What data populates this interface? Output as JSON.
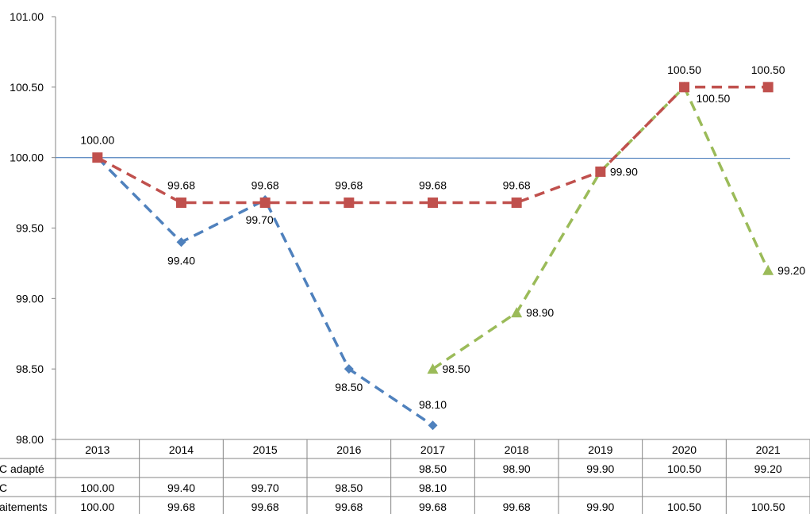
{
  "chart_data": {
    "type": "line",
    "title": "",
    "xlabel": "",
    "ylabel": "",
    "categories": [
      "2013",
      "2014",
      "2015",
      "2016",
      "2017",
      "2018",
      "2019",
      "2020",
      "2021"
    ],
    "ylim": [
      98.0,
      101.0
    ],
    "yticks": [
      "98.00",
      "98.50",
      "99.00",
      "99.50",
      "100.00",
      "100.50",
      "101.00"
    ],
    "reference_line": 100.0,
    "grid": false,
    "legend": "data-table-below",
    "series": [
      {
        "name": "C adapté",
        "color": "#9BBB59",
        "marker": "triangle",
        "values": [
          null,
          null,
          null,
          null,
          98.5,
          98.9,
          99.9,
          100.5,
          99.2
        ],
        "labels": [
          "",
          "",
          "",
          "",
          "98.50",
          "98.90",
          "99.90",
          "100.50",
          "99.20"
        ],
        "table_labels": [
          "",
          "",
          "",
          "",
          "98.50",
          "98.90",
          "99.90",
          "100.50",
          "99.20"
        ]
      },
      {
        "name": "C",
        "color": "#4F81BD",
        "marker": "diamond",
        "values": [
          100.0,
          99.4,
          99.7,
          98.5,
          98.1,
          null,
          null,
          null,
          null
        ],
        "labels": [
          "",
          "99.40",
          "99.70",
          "98.50",
          "98.10",
          "",
          "",
          "",
          ""
        ],
        "table_labels": [
          "100.00",
          "99.40",
          "99.70",
          "98.50",
          "98.10",
          "",
          "",
          "",
          ""
        ]
      },
      {
        "name": "aitements",
        "color": "#C0504D",
        "marker": "square",
        "values": [
          100.0,
          99.68,
          99.68,
          99.68,
          99.68,
          99.68,
          99.9,
          100.5,
          100.5
        ],
        "labels": [
          "100.00",
          "99.68",
          "99.68",
          "99.68",
          "99.68",
          "99.68",
          "",
          "100.50",
          "100.50"
        ],
        "table_labels": [
          "100.00",
          "99.68",
          "99.68",
          "99.68",
          "99.68",
          "99.68",
          "99.90",
          "100.50",
          "100.50"
        ]
      }
    ]
  }
}
